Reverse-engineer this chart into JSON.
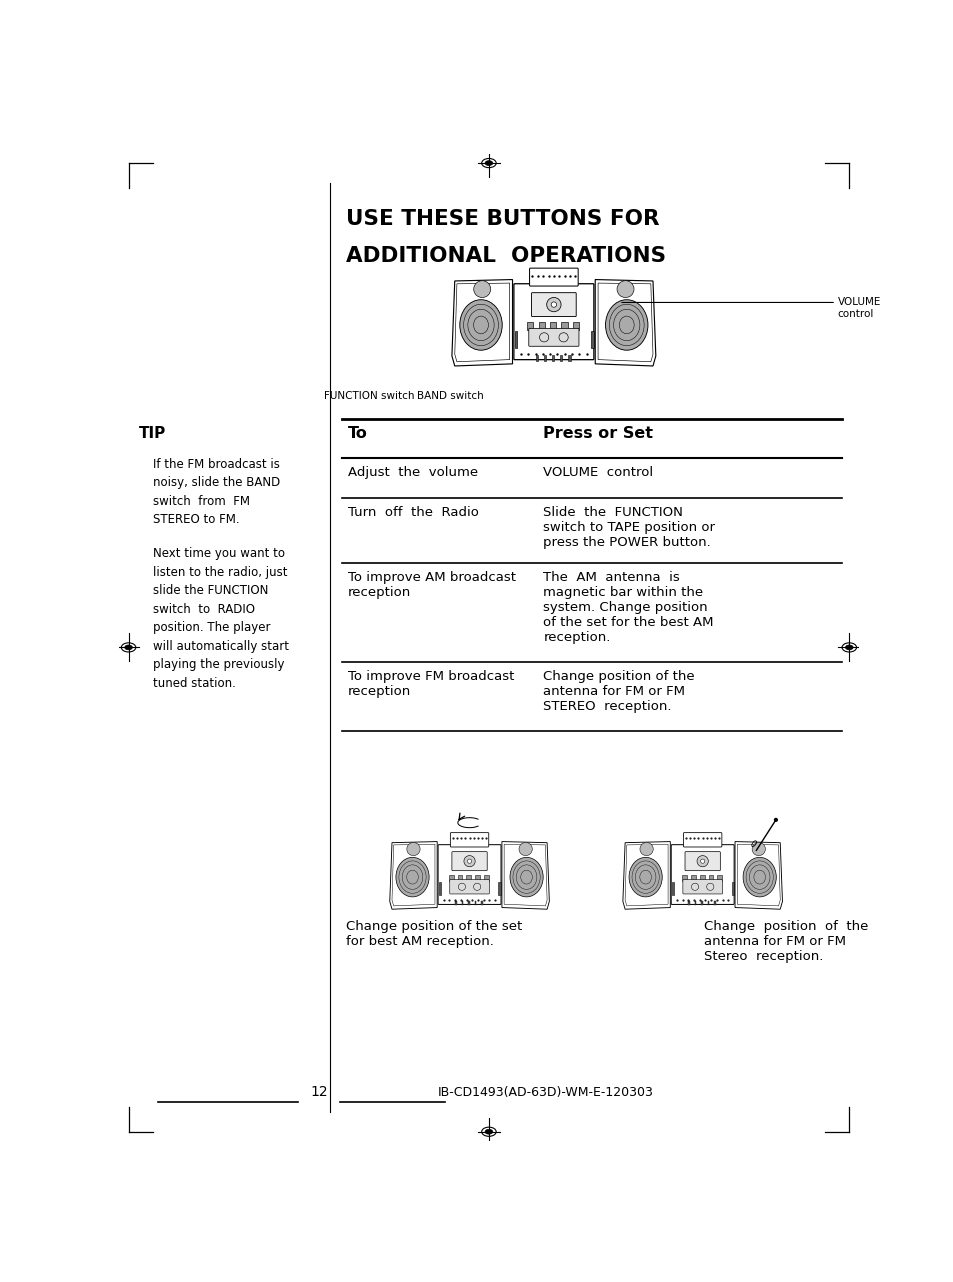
{
  "title_line1": "USE THESE BUTTONS FOR",
  "title_line2": "ADDITIONAL  OPERATIONS",
  "bg_color": "#ffffff",
  "page_width": 9.54,
  "page_height": 12.82,
  "tip_heading": "TIP",
  "tip_para1": "If the FM broadcast is\nnoisy, slide the BAND\nswitch  from  FM\nSTEREO to FM.",
  "tip_para2": "Next time you want to\nlisten to the radio, just\nslide the FUNCTION\nswitch  to  RADIO\nposition. The player\nwill automatically start\nplaying the previously\ntuned station.",
  "table_header_to": "To",
  "table_header_press": "Press or Set",
  "table_rows": [
    {
      "col1": "Adjust  the  volume",
      "col2": "VOLUME  control"
    },
    {
      "col1": "Turn  off  the  Radio",
      "col2": "Slide  the  FUNCTION\nswitch to TAPE position or\npress the POWER button."
    },
    {
      "col1": "To improve AM broadcast\nreception",
      "col2": "The  AM  antenna  is\nmagnetic bar within the\nsystem. Change position\nof the set for the best AM\nreception."
    },
    {
      "col1": "To improve FM broadcast\nreception",
      "col2": "Change position of the\nantenna for FM or FM\nSTEREO  reception."
    }
  ],
  "bottom_caption_left": "Change position of the set\nfor best AM reception.",
  "bottom_caption_right": "Change  position  of  the\nantenna for FM or FM\nStereo  reception.",
  "page_number": "12",
  "footer_text": "IB-CD1493(AD-63D)-WM-E-120303",
  "volume_label": "VOLUME\ncontrol",
  "function_label": "FUNCTION switch",
  "band_label": "BAND switch"
}
